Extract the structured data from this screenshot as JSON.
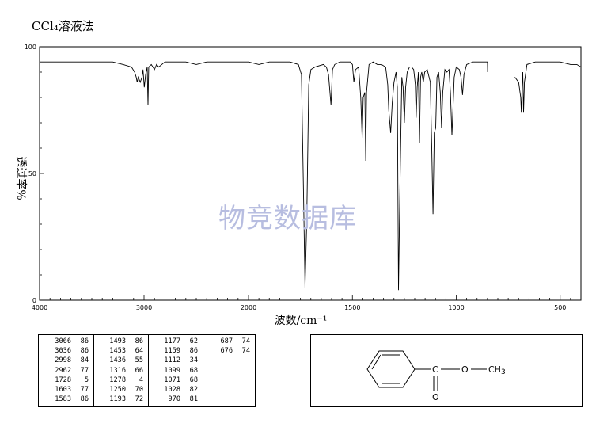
{
  "title": "CCl₄溶液法",
  "watermark": "物竞数据库",
  "chart_data": {
    "type": "line",
    "title": "CCl₄溶液法",
    "xlabel": "波数/cm⁻¹",
    "ylabel": "透过率%",
    "xlim": [
      4000,
      400
    ],
    "ylim": [
      0,
      100
    ],
    "x_ticks": [
      4000,
      3000,
      2000,
      1500,
      1000,
      500
    ],
    "y_ticks": [
      0,
      50,
      100
    ],
    "grid": false,
    "series": [
      {
        "x": [
          4000,
          3800,
          3700,
          3600,
          3500,
          3400,
          3300,
          3200,
          3120,
          3090,
          3075,
          3066,
          3055,
          3036,
          3020,
          3010,
          2998,
          2985,
          2970,
          2962,
          2955,
          2930,
          2900,
          2880,
          2860,
          2800,
          2700,
          2600,
          2500,
          2400,
          2300,
          2200,
          2100,
          2000,
          1950,
          1900,
          1850,
          1800,
          1760,
          1745,
          1735,
          1728,
          1720,
          1710,
          1700,
          1680,
          1640,
          1625,
          1615,
          1603,
          1596,
          1585,
          1560,
          1530,
          1510,
          1500,
          1493,
          1485,
          1470,
          1460,
          1453,
          1448,
          1440,
          1436,
          1432,
          1420,
          1400,
          1380,
          1360,
          1340,
          1330,
          1325,
          1316,
          1308,
          1300,
          1290,
          1284,
          1278,
          1272,
          1262,
          1256,
          1250,
          1244,
          1236,
          1225,
          1215,
          1205,
          1197,
          1193,
          1188,
          1182,
          1177,
          1172,
          1166,
          1159,
          1152,
          1140,
          1125,
          1118,
          1112,
          1106,
          1099,
          1093,
          1085,
          1077,
          1071,
          1065,
          1055,
          1045,
          1035,
          1028,
          1021,
          1010,
          1000,
          985,
          977,
          970,
          963,
          950,
          920,
          880,
          850,
          849,
          720,
          718,
          700,
          690,
          687,
          683,
          680,
          676,
          672,
          660,
          620,
          560,
          500,
          450,
          420,
          400
        ],
        "y": [
          94,
          94,
          94,
          94,
          94,
          94,
          94,
          93,
          92,
          90,
          88,
          86,
          88,
          86,
          88,
          91,
          84,
          89,
          92,
          77,
          92,
          93,
          91,
          93,
          92,
          94,
          94,
          94,
          93,
          94,
          94,
          94,
          94,
          94,
          93,
          94,
          94,
          94,
          93,
          89,
          40,
          5,
          30,
          85,
          91,
          92,
          93,
          92,
          89,
          77,
          91,
          93,
          94,
          94,
          94,
          93,
          86,
          91,
          92,
          80,
          64,
          80,
          82,
          55,
          82,
          93,
          94,
          93,
          93,
          92,
          85,
          75,
          66,
          78,
          86,
          90,
          84,
          4,
          40,
          88,
          84,
          70,
          84,
          90,
          92,
          92,
          91,
          85,
          72,
          84,
          90,
          62,
          88,
          90,
          86,
          90,
          91,
          86,
          60,
          34,
          66,
          68,
          88,
          90,
          82,
          68,
          82,
          91,
          90,
          91,
          82,
          65,
          88,
          92,
          91,
          88,
          81,
          89,
          93,
          94,
          94,
          94,
          90,
          null,
          88,
          86,
          80,
          74,
          85,
          90,
          74,
          86,
          93,
          94,
          94,
          94,
          93,
          93,
          92
        ]
      }
    ]
  },
  "peak_table": {
    "columns": [
      [
        [
          "3066",
          "86"
        ],
        [
          "3036",
          "86"
        ],
        [
          "2998",
          "84"
        ],
        [
          "2962",
          "77"
        ],
        [
          "1728",
          "5"
        ],
        [
          "1603",
          "77"
        ],
        [
          "1583",
          "86"
        ]
      ],
      [
        [
          "1493",
          "86"
        ],
        [
          "1453",
          "64"
        ],
        [
          "1436",
          "55"
        ],
        [
          "1316",
          "66"
        ],
        [
          "1278",
          "4"
        ],
        [
          "1250",
          "70"
        ],
        [
          "1193",
          "72"
        ]
      ],
      [
        [
          "1177",
          "62"
        ],
        [
          "1159",
          "86"
        ],
        [
          "1112",
          "34"
        ],
        [
          "1099",
          "68"
        ],
        [
          "1071",
          "68"
        ],
        [
          "1028",
          "82"
        ],
        [
          "970",
          "81"
        ]
      ],
      [
        [
          "687",
          "74"
        ],
        [
          "676",
          "74"
        ]
      ]
    ]
  },
  "structure": {
    "carbon": "C",
    "oxygen_ester": "O",
    "methyl": "CH",
    "methyl_sub": "3",
    "oxygen_carbonyl": "O"
  }
}
